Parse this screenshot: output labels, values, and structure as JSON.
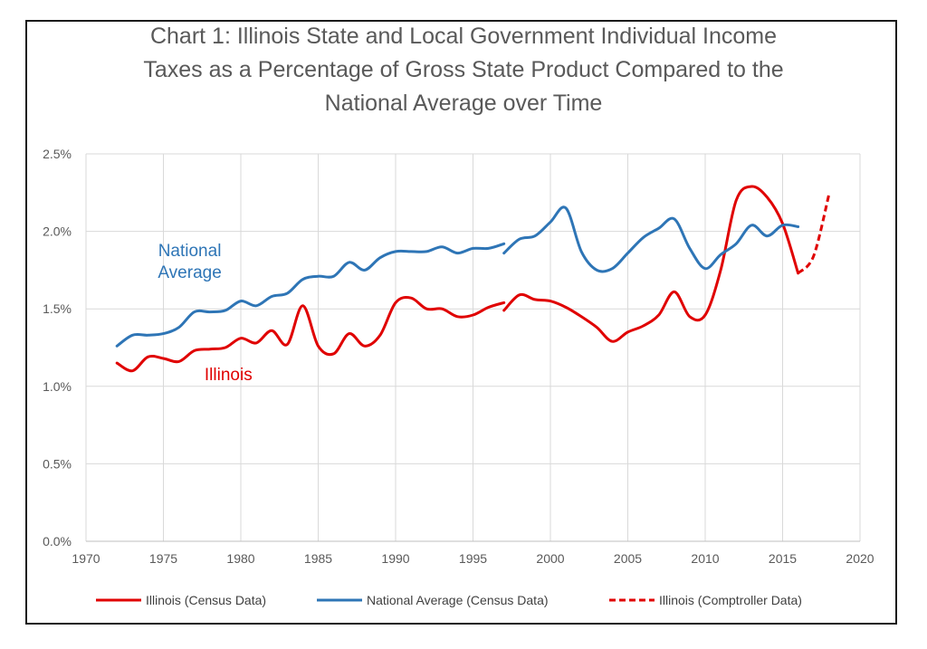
{
  "chart_data": {
    "type": "line",
    "title_lines": [
      "Chart 1:  Illinois State and Local Government Individual Income",
      "Taxes as a Percentage of Gross State Product Compared to the",
      "National Average over Time"
    ],
    "xlim": [
      1970,
      2020
    ],
    "ylim": [
      0,
      0.025
    ],
    "x_ticks": [
      {
        "v": 1970,
        "label": "1970"
      },
      {
        "v": 1975,
        "label": "1975"
      },
      {
        "v": 1980,
        "label": "1980"
      },
      {
        "v": 1985,
        "label": "1985"
      },
      {
        "v": 1990,
        "label": "1990"
      },
      {
        "v": 1995,
        "label": "1995"
      },
      {
        "v": 2000,
        "label": "2000"
      },
      {
        "v": 2005,
        "label": "2005"
      },
      {
        "v": 2010,
        "label": "2010"
      },
      {
        "v": 2015,
        "label": "2015"
      },
      {
        "v": 2020,
        "label": "2020"
      }
    ],
    "y_ticks": [
      {
        "v": 0.0,
        "label": "0.0%"
      },
      {
        "v": 0.005,
        "label": "0.5%"
      },
      {
        "v": 0.01,
        "label": "1.0%"
      },
      {
        "v": 0.015,
        "label": "1.5%"
      },
      {
        "v": 0.02,
        "label": "2.0%"
      },
      {
        "v": 0.025,
        "label": "2.5%"
      }
    ],
    "grid": true,
    "legend_position": "bottom",
    "annotations": [
      {
        "lines": [
          "National",
          "Average"
        ],
        "color": "#2e75b6",
        "x": 1976.7,
        "y": 0.0184
      },
      {
        "lines": [
          "Illinois"
        ],
        "color": "#e00000",
        "x": 1979.2,
        "y": 0.0104
      }
    ],
    "series": [
      {
        "name": "Illinois (Census Data)",
        "color": "#e00000",
        "style": "solid",
        "segments": [
          {
            "x": [
              1972,
              1973,
              1974,
              1975,
              1976,
              1977,
              1978,
              1979,
              1980,
              1981,
              1982,
              1983,
              1984,
              1985,
              1986,
              1987,
              1988,
              1989,
              1990,
              1991,
              1992,
              1993,
              1994,
              1995,
              1996,
              1997
            ],
            "y": [
              0.0115,
              0.011,
              0.0119,
              0.0118,
              0.0116,
              0.0123,
              0.0124,
              0.0125,
              0.0131,
              0.0128,
              0.0136,
              0.0127,
              0.0152,
              0.0126,
              0.0121,
              0.0134,
              0.0126,
              0.0133,
              0.0154,
              0.0157,
              0.015,
              0.015,
              0.0145,
              0.0146,
              0.0151,
              0.0154
            ]
          },
          {
            "x": [
              1997,
              1998,
              1999,
              2000,
              2001,
              2002,
              2003,
              2004,
              2005,
              2006,
              2007,
              2008,
              2009,
              2010,
              2011,
              2012,
              2013,
              2014,
              2015,
              2016
            ],
            "y": [
              0.0149,
              0.0159,
              0.0156,
              0.0155,
              0.0151,
              0.0145,
              0.0138,
              0.0129,
              0.0135,
              0.0139,
              0.0146,
              0.0161,
              0.0145,
              0.0146,
              0.0175,
              0.022,
              0.0229,
              0.0222,
              0.0205,
              0.0173
            ]
          }
        ]
      },
      {
        "name": "National Average (Census Data)",
        "color": "#2e75b6",
        "style": "solid",
        "segments": [
          {
            "x": [
              1972,
              1973,
              1974,
              1975,
              1976,
              1977,
              1978,
              1979,
              1980,
              1981,
              1982,
              1983,
              1984,
              1985,
              1986,
              1987,
              1988,
              1989,
              1990,
              1991,
              1992,
              1993,
              1994,
              1995,
              1996,
              1997
            ],
            "y": [
              0.0126,
              0.0133,
              0.0133,
              0.0134,
              0.0138,
              0.0148,
              0.0148,
              0.0149,
              0.0155,
              0.0152,
              0.0158,
              0.016,
              0.0169,
              0.0171,
              0.0171,
              0.018,
              0.0175,
              0.0183,
              0.0187,
              0.0187,
              0.0187,
              0.019,
              0.0186,
              0.0189,
              0.0189,
              0.0192
            ]
          },
          {
            "x": [
              1997,
              1998,
              1999,
              2000,
              2001,
              2002,
              2003,
              2004,
              2005,
              2006,
              2007,
              2008,
              2009,
              2010,
              2011,
              2012,
              2013,
              2014,
              2015,
              2016
            ],
            "y": [
              0.0186,
              0.0195,
              0.0197,
              0.0206,
              0.0215,
              0.0187,
              0.0175,
              0.0176,
              0.0186,
              0.0196,
              0.0202,
              0.0208,
              0.0189,
              0.0176,
              0.0185,
              0.0192,
              0.0204,
              0.0197,
              0.0204,
              0.0203
            ]
          }
        ]
      },
      {
        "name": "Illinois (Comptroller Data)",
        "color": "#e00000",
        "style": "dashed",
        "segments": [
          {
            "x": [
              2016,
              2017,
              2018
            ],
            "y": [
              0.0173,
              0.0184,
              0.0224
            ]
          }
        ]
      }
    ]
  }
}
